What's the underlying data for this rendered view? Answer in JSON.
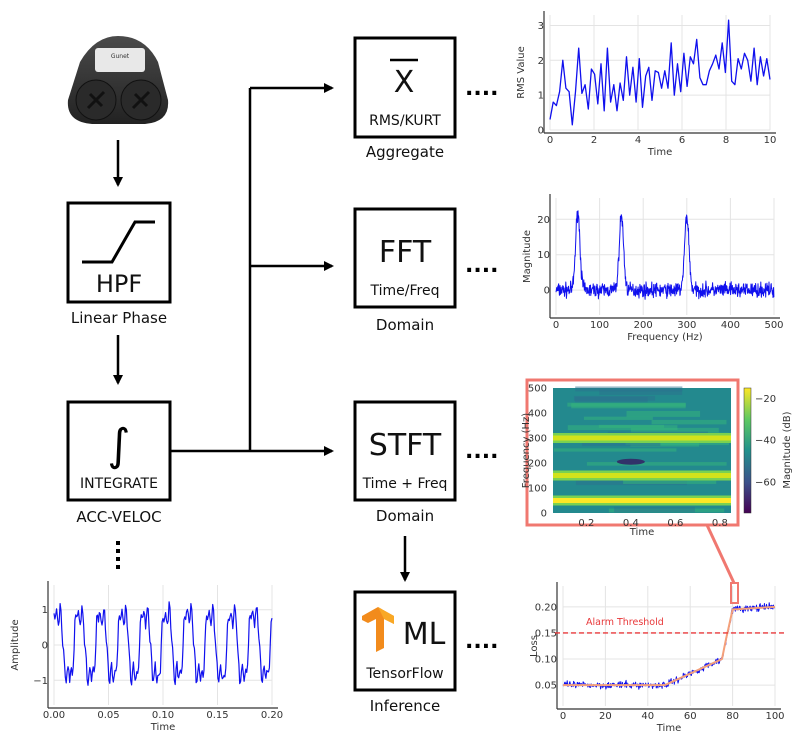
{
  "colors": {
    "line": "#1010ee",
    "trend": "#f4a07a",
    "threshold": "#e8383a",
    "highlight": "#f07870",
    "arrow": "#000000"
  },
  "sensor": {
    "icon": "vibration-sensor-device",
    "brand": "Gunet"
  },
  "blocks": {
    "hpf": {
      "title": "HPF",
      "caption": "Linear Phase",
      "icon": "high-pass-filter-icon"
    },
    "integrate": {
      "symbol": "∫",
      "title": "INTEGRATE",
      "caption": "ACC-VELOC"
    },
    "aggregate": {
      "symbol": "X",
      "title": "RMS/KURT",
      "caption": "Aggregate"
    },
    "fft": {
      "title": "FFT",
      "subtitle": "Time/Freq",
      "caption": "Domain"
    },
    "stft": {
      "title": "STFT",
      "subtitle": "Time + Freq",
      "caption": "Domain"
    },
    "ml": {
      "title": "ML",
      "subtitle": "TensorFlow",
      "caption": "Inference",
      "icon": "tensorflow-logo"
    }
  },
  "connector_dots": "....",
  "chart_data": [
    {
      "id": "rms",
      "type": "line",
      "xlabel": "Time",
      "ylabel": "RMS Value",
      "xlim": [
        0,
        10
      ],
      "ylim": [
        0,
        3.3
      ],
      "grid": true,
      "xticks": [
        "0",
        "2",
        "4",
        "6",
        "8",
        "10"
      ],
      "yticks": [
        "0",
        "1",
        "2",
        "3"
      ],
      "y": [
        0.3,
        0.8,
        0.7,
        1.1,
        2.0,
        1.2,
        1.1,
        0.15,
        1.1,
        2.35,
        1.05,
        1.3,
        0.6,
        1.75,
        1.6,
        0.75,
        1.9,
        0.55,
        2.35,
        0.8,
        1.3,
        0.55,
        1.35,
        0.85,
        2.1,
        1.0,
        1.8,
        0.8,
        2.05,
        0.65,
        1.55,
        1.8,
        0.85,
        1.7,
        1.65,
        1.2,
        1.7,
        1.2,
        2.5,
        1.0,
        1.9,
        1.1,
        2.2,
        1.25,
        2.1,
        1.9,
        2.6,
        1.5,
        1.3,
        1.3,
        1.7,
        1.9,
        2.15,
        1.75,
        2.5,
        1.65,
        3.15,
        1.4,
        1.3,
        2.05,
        1.75,
        2.2,
        2.0,
        1.4,
        2.35,
        1.3,
        2.1,
        1.55,
        2.05,
        1.45
      ]
    },
    {
      "id": "fft",
      "type": "line",
      "xlabel": "Frequency (Hz)",
      "ylabel": "Magnitude",
      "xlim": [
        0,
        500
      ],
      "ylim": [
        -7,
        26
      ],
      "grid": true,
      "xticks": [
        "0",
        "100",
        "200",
        "300",
        "400",
        "500"
      ],
      "yticks": [
        "0",
        "10",
        "20"
      ],
      "peaks": [
        {
          "x": 50,
          "y": 22
        },
        {
          "x": 150,
          "y": 21
        },
        {
          "x": 300,
          "y": 21
        }
      ],
      "noise_level": 3
    },
    {
      "id": "stft",
      "type": "heatmap",
      "xlabel": "Time",
      "ylabel": "Frequency (Hz)",
      "xlim": [
        0.05,
        0.85
      ],
      "ylim": [
        0,
        500
      ],
      "xticks": [
        "0.2",
        "0.4",
        "0.6",
        "0.8"
      ],
      "yticks": [
        "0",
        "100",
        "200",
        "300",
        "400",
        "500"
      ],
      "bands_hz": [
        50,
        150,
        300
      ],
      "colorbar": {
        "label": "Magnitude (dB)",
        "ticks": [
          "−20",
          "−40",
          "−60"
        ],
        "range": [
          -75,
          -15
        ]
      }
    },
    {
      "id": "loss",
      "type": "line",
      "xlabel": "Time",
      "ylabel": "Loss",
      "xlim": [
        0,
        100
      ],
      "ylim": [
        0.01,
        0.24
      ],
      "grid": true,
      "xticks": [
        "0",
        "20",
        "40",
        "60",
        "80",
        "100"
      ],
      "yticks": [
        "0.05",
        "0.10",
        "0.15",
        "0.20"
      ],
      "trend": [
        [
          0,
          0.05
        ],
        [
          48,
          0.05
        ],
        [
          75,
          0.1
        ],
        [
          77,
          0.14
        ],
        [
          80,
          0.195
        ],
        [
          100,
          0.2
        ]
      ],
      "noise_level": 0.01,
      "threshold": {
        "value": 0.15,
        "label": "Alarm Threshold"
      }
    },
    {
      "id": "amplitude",
      "type": "line",
      "xlabel": "Time",
      "ylabel": "Amplitude",
      "xlim": [
        0,
        0.2
      ],
      "ylim": [
        -1.7,
        1.7
      ],
      "grid": true,
      "xticks": [
        "0.00",
        "0.05",
        "0.10",
        "0.15",
        "0.20"
      ],
      "yticks": [
        "-1",
        "0",
        "1"
      ],
      "components": [
        {
          "freq_hz": 50,
          "amp": 1.0
        },
        {
          "freq_hz": 150,
          "amp": 0.3
        },
        {
          "freq_hz": 300,
          "amp": 0.2
        }
      ],
      "noise_level": 0.2
    }
  ]
}
